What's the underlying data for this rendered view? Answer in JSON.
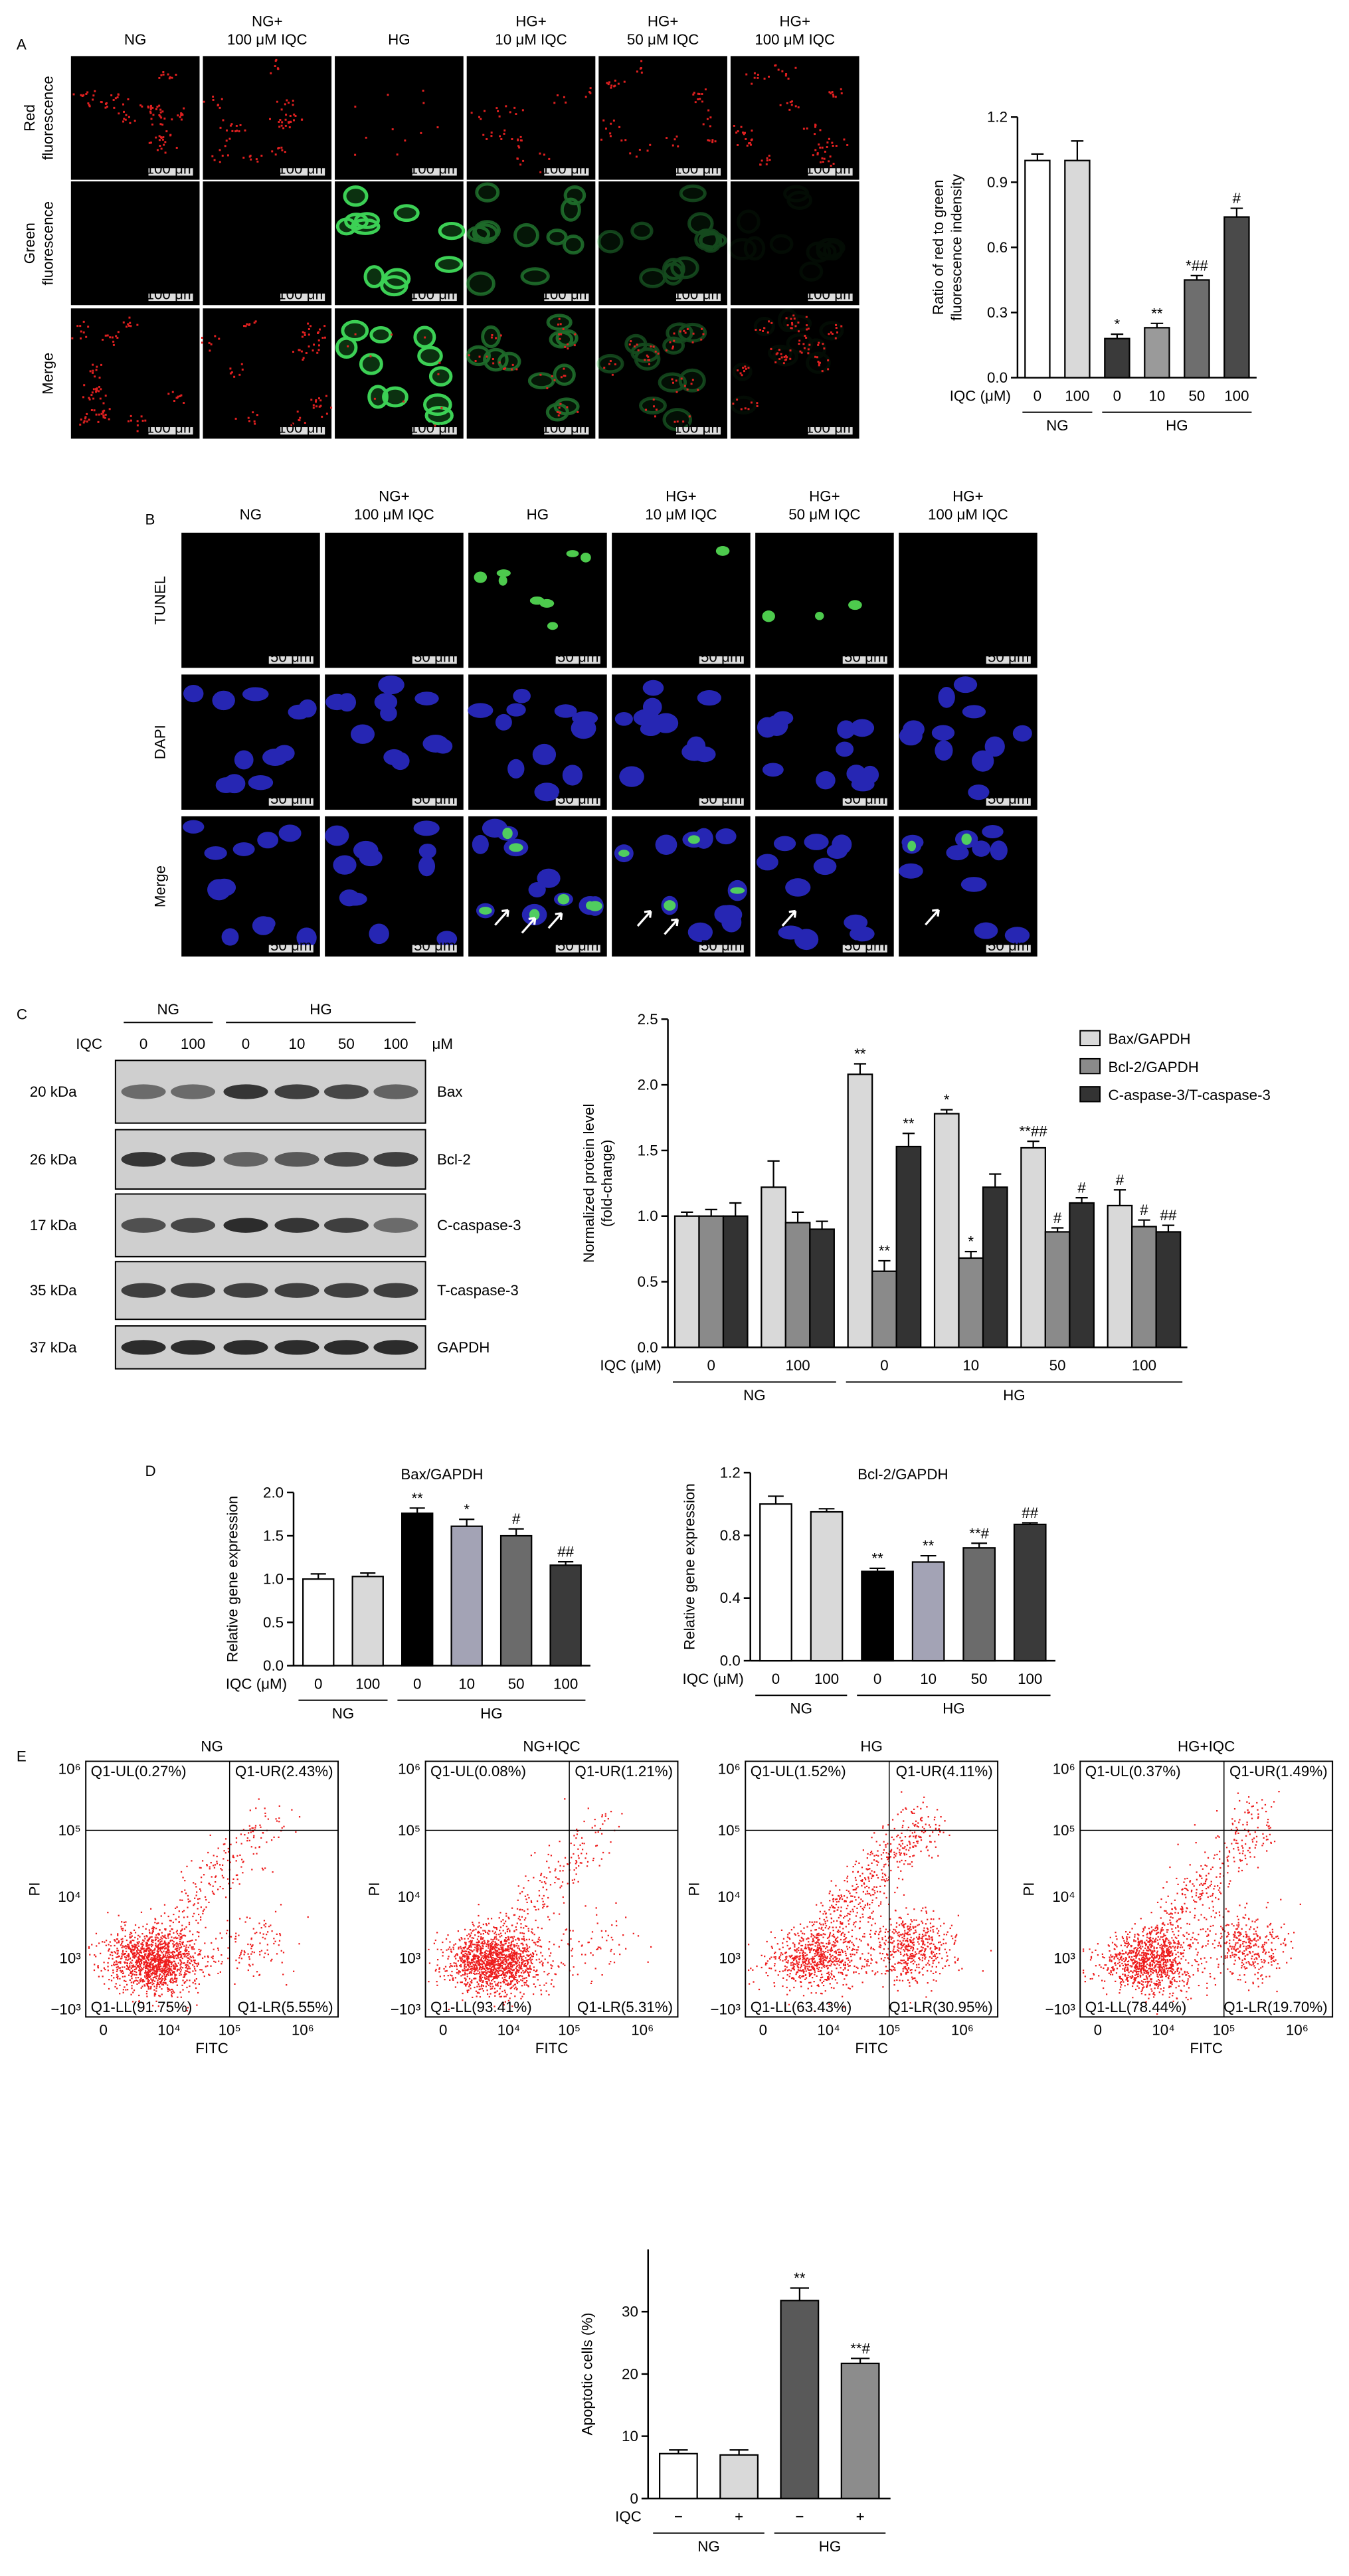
{
  "panel_labels": [
    "A",
    "B",
    "C",
    "D",
    "E"
  ],
  "panel_A_images": {
    "columns": [
      [
        "NG"
      ],
      [
        "NG+",
        "100 μM IQC"
      ],
      [
        "HG"
      ],
      [
        "HG+",
        "10 μM IQC"
      ],
      [
        "HG+",
        "50 μM IQC"
      ],
      [
        "HG+",
        "100 μM IQC"
      ]
    ],
    "rows": [
      [
        "Red",
        "fluorescence"
      ],
      [
        "Green",
        "fluorescence"
      ],
      [
        "Merge"
      ]
    ],
    "scale_bar": "100 μm"
  },
  "panel_B_images": {
    "columns": [
      [
        "NG"
      ],
      [
        "NG+",
        "100 μM IQC"
      ],
      [
        "HG"
      ],
      [
        "HG+",
        "10 μM IQC"
      ],
      [
        "HG+",
        "50 μM IQC"
      ],
      [
        "HG+",
        "100 μM IQC"
      ]
    ],
    "rows": [
      [
        "TUNEL"
      ],
      [
        "DAPI"
      ],
      [
        "Merge"
      ]
    ],
    "scale_bar": "50 μm"
  },
  "western_blot": {
    "treatment": "IQC",
    "unit": "μM",
    "groups": [
      {
        "name": "NG",
        "lanes": [
          "0",
          "100"
        ]
      },
      {
        "name": "HG",
        "lanes": [
          "0",
          "10",
          "50",
          "100"
        ]
      }
    ],
    "bands": [
      {
        "size": "20 kDa",
        "protein": "Bax"
      },
      {
        "size": "26 kDa",
        "protein": "Bcl-2"
      },
      {
        "size": "17 kDa",
        "protein": "C-caspase-3"
      },
      {
        "size": "35 kDa",
        "protein": "T-caspase-3"
      },
      {
        "size": "37 kDa",
        "protein": "GAPDH"
      }
    ]
  },
  "flow_cytometry": {
    "x_label": "FITC",
    "y_label": "PI",
    "x_ticks": [
      "0",
      "10⁴",
      "10⁵",
      "10⁶"
    ],
    "y_ticks": [
      "−10³",
      "10³",
      "10⁴",
      "10⁵",
      "10⁶"
    ],
    "plots": [
      {
        "title": "NG",
        "quadrants": {
          "UL": "Q1-UL(0.27%)",
          "UR": "Q1-UR(2.43%)",
          "LL": "Q1-LL(91.75%)",
          "LR": "Q1-LR(5.55%)"
        }
      },
      {
        "title": "NG+IQC",
        "quadrants": {
          "UL": "Q1-UL(0.08%)",
          "UR": "Q1-UR(1.21%)",
          "LL": "Q1-LL(93.41%)",
          "LR": "Q1-LR(5.31%)"
        }
      },
      {
        "title": "HG",
        "quadrants": {
          "UL": "Q1-UL(1.52%)",
          "UR": "Q1-UR(4.11%)",
          "LL": "Q1-LL(63.43%)",
          "LR": "Q1-LR(30.95%)"
        }
      },
      {
        "title": "HG+IQC",
        "quadrants": {
          "UL": "Q1-UL(0.37%)",
          "UR": "Q1-UR(1.49%)",
          "LL": "Q1-LL(78.44%)",
          "LR": "Q1-LR(19.70%)"
        }
      }
    ]
  },
  "chart_data": [
    {
      "type": "bar",
      "y_label": [
        "Ratio of red to green",
        "fluorescence indensity"
      ],
      "x_label": "IQC (μM)",
      "groups": [
        {
          "name": "NG",
          "categories": [
            "0",
            "100"
          ]
        },
        {
          "name": "HG",
          "categories": [
            "0",
            "10",
            "50",
            "100"
          ]
        }
      ],
      "series": [
        {
          "colors": [
            "#ffffff",
            "#d9d9d9",
            "#3a3a3a",
            "#9a9a9a",
            "#6e6e6e",
            "#4a4a4a"
          ],
          "values": [
            1.0,
            1.0,
            0.18,
            0.23,
            0.45,
            0.74
          ],
          "errors": [
            0.03,
            0.09,
            0.02,
            0.02,
            0.02,
            0.04
          ],
          "annotations": [
            null,
            null,
            "*",
            "**",
            "*##",
            "#"
          ]
        }
      ],
      "ylim": [
        0,
        1.2
      ],
      "yticks": [
        {
          "value": 0,
          "label": "0.0"
        },
        0.3,
        0.6,
        0.9,
        1.2
      ]
    },
    {
      "type": "bar",
      "y_label": [
        "Normalized protein level",
        "(fold-change)"
      ],
      "x_label": "IQC (μM)",
      "groups": [
        {
          "name": "NG",
          "categories": [
            "0",
            "100"
          ]
        },
        {
          "name": "HG",
          "categories": [
            "0",
            "10",
            "50",
            "100"
          ]
        }
      ],
      "series": [
        {
          "name": "Bax/GAPDH",
          "color": "#d9d9d9",
          "values": [
            1.0,
            1.22,
            2.08,
            1.78,
            1.52,
            1.08
          ],
          "errors": [
            0.03,
            0.2,
            0.08,
            0.03,
            0.05,
            0.12
          ],
          "annotations": [
            null,
            null,
            "**",
            "*",
            "**##",
            "#"
          ]
        },
        {
          "name": "Bcl-2/GAPDH",
          "color": "#8a8a8a",
          "values": [
            1.0,
            0.95,
            0.58,
            0.68,
            0.88,
            0.92
          ],
          "errors": [
            0.05,
            0.08,
            0.08,
            0.05,
            0.03,
            0.05
          ],
          "annotations": [
            null,
            null,
            "**",
            "*",
            "#",
            "#"
          ]
        },
        {
          "name": "C-aspase-3/T-caspase-3",
          "color": "#333333",
          "values": [
            1.0,
            0.9,
            1.53,
            1.22,
            1.1,
            0.88
          ],
          "errors": [
            0.1,
            0.06,
            0.1,
            0.1,
            0.04,
            0.05
          ],
          "annotations": [
            null,
            null,
            "**",
            null,
            "#",
            "##"
          ]
        }
      ],
      "legend": "upper right",
      "ylim": [
        0,
        2.5
      ],
      "yticks": [
        {
          "value": 0,
          "label": "0.0"
        },
        0.5,
        {
          "value": 1,
          "label": "1.0"
        },
        1.5,
        {
          "value": 2,
          "label": "2.0"
        },
        2.5
      ]
    },
    {
      "type": "bar",
      "title": "Bax/GAPDH",
      "y_label": [
        "Relative gene expression"
      ],
      "x_label": "IQC (μM)",
      "groups": [
        {
          "name": "NG",
          "categories": [
            "0",
            "100"
          ]
        },
        {
          "name": "HG",
          "categories": [
            "0",
            "10",
            "50",
            "100"
          ]
        }
      ],
      "series": [
        {
          "colors": [
            "#ffffff",
            "#d9d9d9",
            "#000000",
            "#a3a3b5",
            "#6b6b6b",
            "#3a3a3a"
          ],
          "values": [
            1.0,
            1.03,
            1.76,
            1.61,
            1.5,
            1.16
          ],
          "errors": [
            0.06,
            0.04,
            0.06,
            0.08,
            0.08,
            0.04
          ],
          "annotations": [
            null,
            null,
            "**",
            "*",
            "#",
            "##"
          ]
        }
      ],
      "ylim": [
        0,
        2.0
      ],
      "yticks": [
        {
          "value": 0,
          "label": "0.0"
        },
        0.5,
        {
          "value": 1,
          "label": "1.0"
        },
        1.5,
        {
          "value": 2,
          "label": "2.0"
        }
      ]
    },
    {
      "type": "bar",
      "title": "Bcl-2/GAPDH",
      "y_label": [
        "Relative gene expression"
      ],
      "x_label": "IQC (μM)",
      "groups": [
        {
          "name": "NG",
          "categories": [
            "0",
            "100"
          ]
        },
        {
          "name": "HG",
          "categories": [
            "0",
            "10",
            "50",
            "100"
          ]
        }
      ],
      "series": [
        {
          "colors": [
            "#ffffff",
            "#d9d9d9",
            "#000000",
            "#a3a3b5",
            "#6b6b6b",
            "#3a3a3a"
          ],
          "values": [
            1.0,
            0.95,
            0.57,
            0.63,
            0.72,
            0.87
          ],
          "errors": [
            0.05,
            0.02,
            0.02,
            0.04,
            0.03,
            0.01
          ],
          "annotations": [
            null,
            null,
            "**",
            "**",
            "**#",
            "##"
          ]
        }
      ],
      "ylim": [
        0,
        1.2
      ],
      "yticks": [
        {
          "value": 0,
          "label": "0.0"
        },
        0.4,
        0.8,
        1.2
      ]
    },
    {
      "type": "bar",
      "y_label": [
        "Apoptotic cells (%)"
      ],
      "x_label": "IQC",
      "groups": [
        {
          "name": "NG",
          "categories": [
            "−",
            "+"
          ]
        },
        {
          "name": "HG",
          "categories": [
            "−",
            "+"
          ]
        }
      ],
      "series": [
        {
          "colors": [
            "#ffffff",
            "#d9d9d9",
            "#595959",
            "#8c8c8c"
          ],
          "values": [
            7.2,
            7.0,
            31.8,
            21.7
          ],
          "errors": [
            0.6,
            0.8,
            2.0,
            0.8
          ],
          "annotations": [
            null,
            null,
            "**",
            "**#"
          ]
        }
      ],
      "ylim": [
        0,
        40
      ],
      "yticks": [
        0,
        10,
        20,
        30
      ]
    }
  ]
}
